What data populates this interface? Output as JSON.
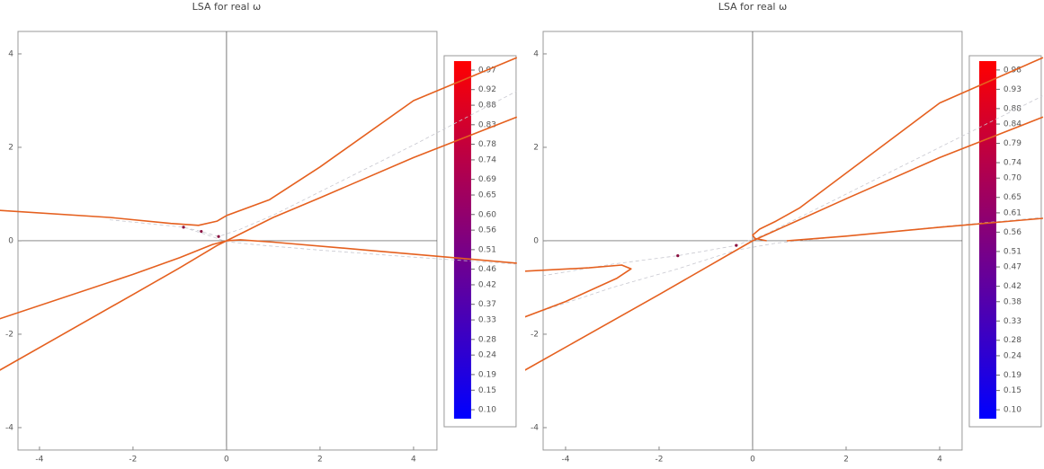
{
  "chart_data": [
    {
      "type": "line",
      "title": "LSA for real ω",
      "xlim": [
        -4.46,
        4.5
      ],
      "ylim": [
        -4.48,
        4.48
      ],
      "xticks": [
        -4,
        -2,
        0,
        2,
        4
      ],
      "yticks": [
        -4,
        -2,
        0,
        2,
        4
      ],
      "series": [
        {
          "style": "dashed",
          "color": "#c8c8d0",
          "x": [
            -2.5,
            -1.5,
            -0.92,
            -0.54,
            -0.17,
            0.3,
            1,
            2,
            4,
            6.2
          ],
          "values": [
            0.45,
            0.35,
            0.29,
            0.2,
            0.09,
            0.25,
            0.55,
            1.05,
            2.05,
            3.2
          ]
        },
        {
          "style": "dashed",
          "color": "#c8c8d0",
          "x": [
            -0.92,
            -0.4,
            0,
            0.8,
            2,
            4,
            6.2
          ],
          "values": [
            0.29,
            0.12,
            -0.02,
            -0.1,
            -0.2,
            -0.35,
            -0.5
          ]
        },
        {
          "style": "solid",
          "color": "#e5601f",
          "x": [
            -4.85,
            -2.5,
            -1.19,
            -0.6,
            -0.2,
            0,
            0.92,
            2,
            4,
            6.21
          ],
          "values": [
            0.65,
            0.5,
            0.37,
            0.33,
            0.42,
            0.54,
            0.88,
            1.58,
            3.0,
            3.92
          ]
        },
        {
          "style": "solid",
          "color": "#e5601f",
          "x": [
            -4.85,
            -2,
            -1,
            -0.3,
            0,
            0.5,
            1,
            2,
            4,
            6.21
          ],
          "values": [
            -1.67,
            -0.72,
            -0.36,
            -0.08,
            0,
            0.25,
            0.5,
            0.92,
            1.78,
            2.65
          ]
        },
        {
          "style": "solid",
          "color": "#e5601f",
          "x": [
            -4.85,
            -2,
            -1,
            -0.2,
            0,
            0.3,
            1,
            3,
            6.21
          ],
          "values": [
            -2.77,
            -1.15,
            -0.58,
            -0.1,
            0,
            0.02,
            -0.03,
            -0.2,
            -0.48
          ]
        },
        {
          "style": "points",
          "color": "#8a1040",
          "x": [
            -0.92,
            -0.54,
            -0.17
          ],
          "values": [
            0.29,
            0.2,
            0.09
          ]
        }
      ],
      "colorbar": {
        "range": [
          0.077,
          0.993
        ],
        "colors": [
          "#0000ff",
          "#ff0000"
        ],
        "ticks": [
          0.97,
          0.92,
          0.88,
          0.83,
          0.78,
          0.74,
          0.69,
          0.65,
          {
            "value": 0.6,
            "label": "0.60"
          },
          0.56,
          0.51,
          0.46,
          0.42,
          0.37,
          0.33,
          0.28,
          0.24,
          0.19,
          0.15,
          {
            "value": 0.1,
            "label": "0.10"
          }
        ]
      }
    },
    {
      "type": "line",
      "title": "LSA for real ω",
      "xlim": [
        -4.48,
        4.48
      ],
      "ylim": [
        -4.48,
        4.48
      ],
      "xticks": [
        -4,
        -2,
        0,
        2,
        4
      ],
      "yticks": [
        -4,
        -2,
        0,
        2,
        4
      ],
      "series": [
        {
          "style": "dashed",
          "color": "#c8c8d0",
          "x": [
            -4.5,
            -3,
            -1.6,
            -0.35,
            0.3,
            1,
            2,
            4,
            6.2
          ],
          "values": [
            -0.75,
            -0.5,
            -0.32,
            -0.1,
            0.15,
            0.5,
            1.0,
            2.0,
            3.1
          ]
        },
        {
          "style": "dashed",
          "color": "#c8c8d0",
          "x": [
            -4.5,
            -3,
            -1.6,
            -0.35,
            0.5,
            2,
            4,
            6.2
          ],
          "values": [
            -1.5,
            -1.0,
            -0.6,
            -0.2,
            -0.05,
            0.1,
            0.3,
            0.5
          ]
        },
        {
          "style": "solid",
          "color": "#e5601f",
          "x": [
            0.3,
            0.05,
            0,
            0.15,
            0.5,
            1,
            2,
            4,
            6.21
          ],
          "values": [
            0,
            0.05,
            0.12,
            0.25,
            0.42,
            0.7,
            1.45,
            2.95,
            3.92
          ]
        },
        {
          "style": "solid",
          "color": "#e5601f",
          "x": [
            -4.87,
            -3.5,
            -2.8,
            -2.6,
            -2.9,
            -4,
            -4.87
          ],
          "values": [
            -0.65,
            -0.58,
            -0.52,
            -0.6,
            -0.8,
            -1.3,
            -1.63
          ]
        },
        {
          "style": "solid",
          "color": "#e5601f",
          "x": [
            -4.87,
            -2,
            0,
            1,
            2,
            4,
            6.21
          ],
          "values": [
            -2.77,
            -1.15,
            0,
            0.45,
            0.9,
            1.78,
            2.65
          ]
        },
        {
          "style": "solid",
          "color": "#e5601f",
          "x": [
            0.73,
            1,
            2,
            4,
            6.21
          ],
          "values": [
            0,
            0.02,
            0.1,
            0.29,
            0.48
          ]
        },
        {
          "style": "points",
          "color": "#8a1040",
          "x": [
            -1.6,
            -0.35
          ],
          "values": [
            -0.32,
            -0.1
          ]
        }
      ],
      "colorbar": {
        "range": [
          0.077,
          1.003
        ],
        "colors": [
          "#0000ff",
          "#ff0000"
        ],
        "ticks": [
          0.98,
          0.93,
          0.88,
          0.84,
          0.79,
          0.74,
          {
            "value": 0.7,
            "label": "0.70"
          },
          0.65,
          0.61,
          0.56,
          0.51,
          0.47,
          0.42,
          0.38,
          0.33,
          0.28,
          0.24,
          0.19,
          0.15,
          {
            "value": 0.1,
            "label": "0.10"
          }
        ]
      }
    }
  ]
}
